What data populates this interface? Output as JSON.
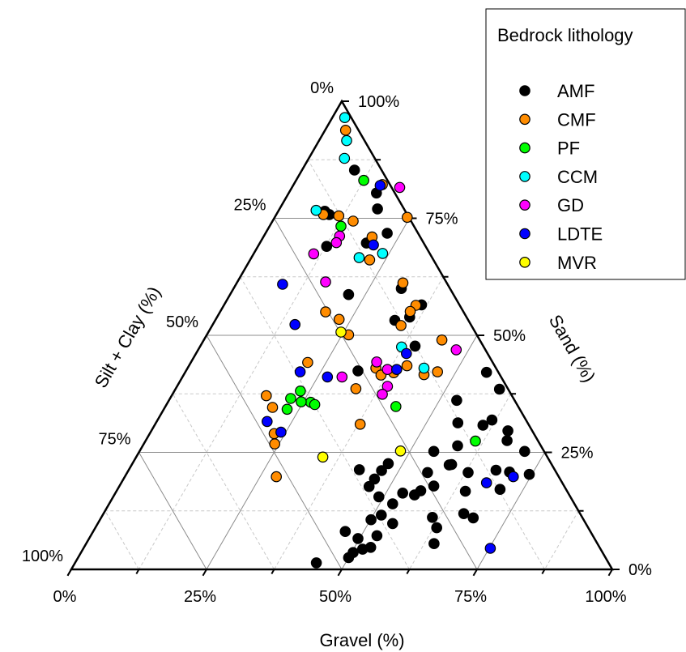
{
  "chart_data": {
    "type": "scatter",
    "subtype": "ternary",
    "axes": {
      "gravel": {
        "label": "Gravel (%)",
        "ticks": [
          "0%",
          "25%",
          "50%",
          "75%",
          "100%"
        ]
      },
      "sand": {
        "label": "Sand (%)",
        "ticks": [
          "0%",
          "25%",
          "50%",
          "75%",
          "100%"
        ]
      },
      "silt_clay": {
        "label": "Silt + Clay (%)",
        "ticks": [
          "0%",
          "25%",
          "50%",
          "75%",
          "100%"
        ]
      }
    },
    "grid": true,
    "legend": {
      "title": "Bedrock lithology",
      "position": "top-right"
    },
    "series": [
      {
        "name": "AMF",
        "color": "#000000",
        "points": [
          [
            44.6,
            1.4,
            54
          ],
          [
            50,
            2.5,
            47.5
          ],
          [
            46.6,
            8.1,
            45.3
          ],
          [
            51.7,
            4.3,
            44
          ],
          [
            50.3,
            3.6,
            46.1
          ],
          [
            53,
            4.7,
            42.3
          ],
          [
            49.7,
            6.6,
            43.7
          ],
          [
            52.9,
            7.2,
            39.9
          ],
          [
            50.1,
            10.6,
            39.3
          ],
          [
            51.5,
            11.6,
            36.9
          ],
          [
            54.5,
            9.8,
            35.7
          ],
          [
            52.4,
            14,
            33.6
          ],
          [
            49.1,
            15.5,
            35.4
          ],
          [
            53.1,
            16.3,
            30.6
          ],
          [
            55.5,
            15.9,
            28.6
          ],
          [
            56.2,
            16.8,
            27
          ],
          [
            46.2,
            17.7,
            36.1
          ],
          [
            46.4,
            19.3,
            34.3
          ],
          [
            42.6,
            21.3,
            36.1
          ],
          [
            46.8,
            21.1,
            32.1
          ],
          [
            47.3,
            22.6,
            30.1
          ],
          [
            58.1,
            17.8,
            24.1
          ],
          [
            55.5,
            20.7,
            23.8
          ],
          [
            61.2,
            11.1,
            27.7
          ],
          [
            64.3,
            5.5,
            30.2
          ],
          [
            63.1,
            8.9,
            28
          ],
          [
            66.6,
            11.9,
            21.5
          ],
          [
            68.8,
            11,
            20.2
          ],
          [
            64.5,
            16.7,
            18.8
          ],
          [
            58.7,
            22.3,
            19
          ],
          [
            54.4,
            25.2,
            20.4
          ],
          [
            59.1,
            22.4,
            18.5
          ],
          [
            63,
            20.7,
            16.3
          ],
          [
            58.2,
            26.4,
            15.4
          ],
          [
            67.9,
            21.2,
            10.9
          ],
          [
            70.7,
            17.1,
            12.2
          ],
          [
            70.6,
            20.8,
            8.6
          ],
          [
            74.5,
            20.3,
            5.2
          ],
          [
            71.2,
            25.2,
            3.6
          ],
          [
            66.8,
            27.5,
            5.7
          ],
          [
            65.9,
            29.6,
            4.5
          ],
          [
            61.8,
            31.9,
            6.3
          ],
          [
            60.7,
            30.8,
            8.5
          ],
          [
            55.8,
            31.3,
            12.9
          ],
          [
            59.9,
            38.5,
            1.6
          ],
          [
            53.2,
            36.1,
            10.7
          ],
          [
            55.7,
            42.1,
            2.2
          ],
          [
            31.8,
            42.4,
            25.8
          ],
          [
            35.6,
            53.9,
            10.5
          ],
          [
            36.5,
            56.5,
            7
          ],
          [
            21.9,
            58.7,
            19.4
          ],
          [
            12.7,
            69,
            18.3
          ],
          [
            9.8,
            75.8,
            14.4
          ],
          [
            8.6,
            76.5,
            14.9
          ],
          [
            9.7,
            85.3,
            5
          ],
          [
            16.2,
            80.4,
            3.4
          ],
          [
            18.1,
            77,
            4.9
          ],
          [
            22.5,
            71.8,
            5.7
          ],
          [
            19.7,
            69.7,
            10.6
          ],
          [
            31,
            60,
            9
          ],
          [
            33.2,
            53.2,
            13.6
          ],
          [
            39.7,
            47.7,
            12.6
          ]
        ]
      },
      {
        "name": "CMF",
        "color": "#FF8C00",
        "points": [
          [
            3.8,
            93.8,
            2.4
          ],
          [
            8.7,
            75.8,
            15.5
          ],
          [
            11.7,
            75.5,
            12.8
          ],
          [
            14.9,
            74.4,
            10.7
          ],
          [
            16.4,
            82.2,
            1.4
          ],
          [
            24.5,
            75.2,
            0.3
          ],
          [
            20.1,
            71,
            8.9
          ],
          [
            22.1,
            66.1,
            11.8
          ],
          [
            30.7,
            61.2,
            8.1
          ],
          [
            35.5,
            56.4,
            8.1
          ],
          [
            35.1,
            55.1,
            9.8
          ],
          [
            34.9,
            52.1,
            13
          ],
          [
            44,
            49,
            7
          ],
          [
            46.6,
            42.2,
            11.2
          ],
          [
            44.4,
            41.6,
            14
          ],
          [
            40.3,
            43.5,
            16.2
          ],
          [
            26.2,
            50.1,
            23.7
          ],
          [
            34.8,
            43,
            22.2
          ],
          [
            36.5,
            41.5,
            22
          ],
          [
            33.3,
            38.6,
            28.1
          ],
          [
            22.8,
            53.4,
            23.8
          ],
          [
            19.5,
            55,
            25.5
          ],
          [
            21.6,
            44.2,
            34.2
          ],
          [
            37.9,
            31,
            31.1
          ],
          [
            17.5,
            37.1,
            45.4
          ],
          [
            19.9,
            34.6,
            45.5
          ],
          [
            23,
            29,
            48
          ],
          [
            24.2,
            26.8,
            49
          ],
          [
            28,
            19.8,
            52.2
          ],
          [
            38.6,
            42,
            19.4
          ]
        ]
      },
      {
        "name": "PF",
        "color": "#00FF00",
        "points": [
          [
            12.5,
            83.1,
            4.4
          ],
          [
            13.2,
            73.3,
            13.5
          ],
          [
            22.3,
            36.5,
            41.2
          ],
          [
            23.3,
            38.1,
            38.6
          ],
          [
            22.8,
            34.2,
            43
          ],
          [
            26.4,
            35.7,
            37.9
          ],
          [
            24.6,
            35.8,
            39.6
          ],
          [
            27.4,
            35.2,
            37.4
          ],
          [
            42.6,
            34.8,
            22.6
          ],
          [
            61,
            27.4,
            11.6
          ]
        ]
      },
      {
        "name": "CCM",
        "color": "#00FFFF",
        "points": [
          [
            2.3,
            96.5,
            1.2
          ],
          [
            5.1,
            91.6,
            3.3
          ],
          [
            6.6,
            87.8,
            5.6
          ],
          [
            6.9,
            76.7,
            16.4
          ],
          [
            19.9,
            66.6,
            13.5
          ],
          [
            23.8,
            67.5,
            8.7
          ],
          [
            37.3,
            47.5,
            15.2
          ],
          [
            43.7,
            43,
            13.3
          ]
        ]
      },
      {
        "name": "GD",
        "color": "#FF00FF",
        "points": [
          [
            19.9,
            81.6,
            -1.5
          ],
          [
            14,
            71.2,
            14.8
          ],
          [
            11.1,
            67.4,
            21.5
          ],
          [
            14.1,
            69.8,
            16.1
          ],
          [
            16.3,
            61.4,
            22.3
          ],
          [
            29.5,
            41.1,
            29.4
          ],
          [
            34.3,
            44.3,
            21.4
          ],
          [
            37.1,
            42.7,
            20.2
          ],
          [
            38.9,
            39.1,
            22
          ],
          [
            38.8,
            37.4,
            23.8
          ],
          [
            47.7,
            46.9,
            5.4
          ]
        ]
      },
      {
        "name": "LDTE",
        "color": "#0000FF",
        "points": [
          [
            16.1,
            82,
            1.9
          ],
          [
            8.6,
            60.9,
            30.5
          ],
          [
            15.2,
            52.3,
            32.5
          ],
          [
            21.2,
            42.2,
            36.6
          ],
          [
            26.8,
            41.1,
            32.1
          ],
          [
            38.8,
            42.7,
            18.5
          ],
          [
            20.4,
            31.6,
            48
          ],
          [
            24.1,
            29.3,
            46.6
          ],
          [
            21.2,
            69.3,
            9.5
          ],
          [
            38.9,
            46.1,
            15
          ],
          [
            67.5,
            18.5,
            14
          ],
          [
            75.2,
            4.5,
            20.3
          ],
          [
            71.8,
            19.8,
            8.4
          ]
        ]
      },
      {
        "name": "MVR",
        "color": "#FFFF00",
        "points": [
          [
            24.5,
            50.7,
            24.8
          ],
          [
            34.5,
            24,
            41.5
          ],
          [
            48.2,
            25.3,
            26.5
          ]
        ]
      }
    ]
  }
}
